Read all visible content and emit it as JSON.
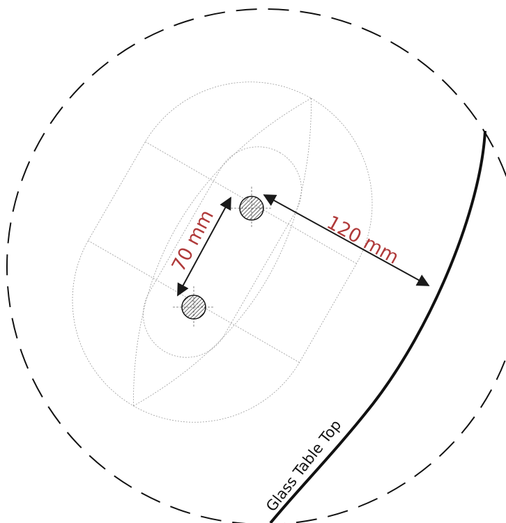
{
  "labels": {
    "bolt_spacing": "70 mm",
    "edge_distance": "120 mm",
    "glass_table_top": "Glass Table Top"
  },
  "colors": {
    "dimension_text": "#b03a3a",
    "outline": "#9a9a9a",
    "ink": "#111111"
  }
}
